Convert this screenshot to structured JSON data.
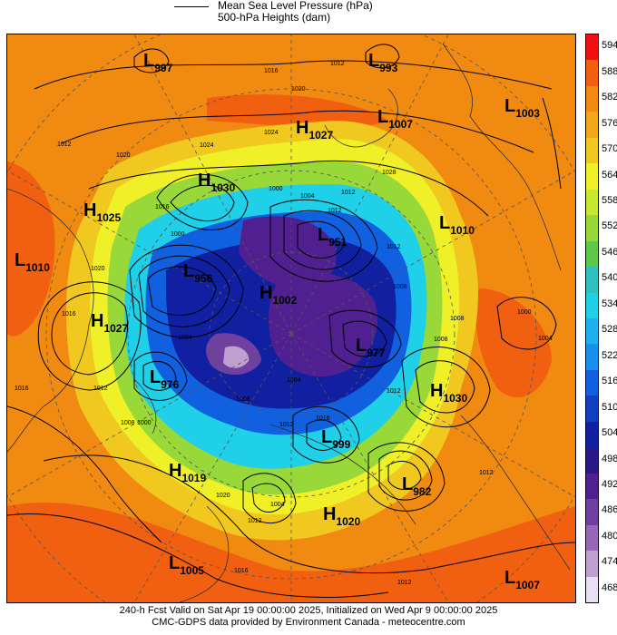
{
  "legend": {
    "mslp_label": "Mean Sea Level Pressure (hPa)",
    "heights_label": "500-hPa Heights (dam)"
  },
  "colorbar": {
    "ticks": [
      "594",
      "588",
      "582",
      "576",
      "570",
      "564",
      "558",
      "552",
      "546",
      "540",
      "534",
      "528",
      "522",
      "516",
      "510",
      "504",
      "498",
      "492",
      "486",
      "480",
      "474",
      "468"
    ],
    "colors": [
      "#f01010",
      "#f06010",
      "#f08a10",
      "#f0a818",
      "#f0c820",
      "#f0f028",
      "#c8e830",
      "#98d838",
      "#60c848",
      "#30c0c0",
      "#20d0e8",
      "#20b0f0",
      "#1890f0",
      "#1060e0",
      "#1040c0",
      "#1020a0",
      "#281888",
      "#502090",
      "#7040a0",
      "#9868b8",
      "#c0a0d0",
      "#e8e0f0"
    ]
  },
  "contour_labels": [
    "1016",
    "1012",
    "1020",
    "1024",
    "1024",
    "1016",
    "1020",
    "1012",
    "1020",
    "1028",
    "1004",
    "1012",
    "1000",
    "1012",
    "1016",
    "1012",
    "1000",
    "1004",
    "1008",
    "1008",
    "1000",
    "1004",
    "1008",
    "1012",
    "1016",
    "1012",
    "1008",
    "1004",
    "1008",
    "1012",
    "1016",
    "1012",
    "1000",
    "1004",
    "1012",
    "1016",
    "1012",
    "1020"
  ],
  "pressure_centers": [
    {
      "letter": "L",
      "value": "997"
    },
    {
      "letter": "L",
      "value": "993"
    },
    {
      "letter": "L",
      "value": "1007"
    },
    {
      "letter": "L",
      "value": "1003"
    },
    {
      "letter": "H",
      "value": "1027"
    },
    {
      "letter": "H",
      "value": "1030"
    },
    {
      "letter": "H",
      "value": "1025"
    },
    {
      "letter": "L",
      "value": "1010"
    },
    {
      "letter": "L",
      "value": "1010"
    },
    {
      "letter": "L",
      "value": "956"
    },
    {
      "letter": "L",
      "value": "951"
    },
    {
      "letter": "H",
      "value": "1027"
    },
    {
      "letter": "H",
      "value": "1002"
    },
    {
      "letter": "L",
      "value": "977"
    },
    {
      "letter": "L",
      "value": "976"
    },
    {
      "letter": "H",
      "value": "1030"
    },
    {
      "letter": "L",
      "value": "999"
    },
    {
      "letter": "H",
      "value": "1019"
    },
    {
      "letter": "L",
      "value": "982"
    },
    {
      "letter": "H",
      "value": "1020"
    },
    {
      "letter": "L",
      "value": "1005"
    },
    {
      "letter": "L",
      "value": "1007"
    }
  ],
  "footer": {
    "line1": "240-h Fcst Valid on Sat Apr 19 00:00:00 2025, Initialized on Wed Apr  9 00:00:00 2025",
    "line2": "CMC-GDPS data provided by Environment Canada - meteocentre.com"
  }
}
